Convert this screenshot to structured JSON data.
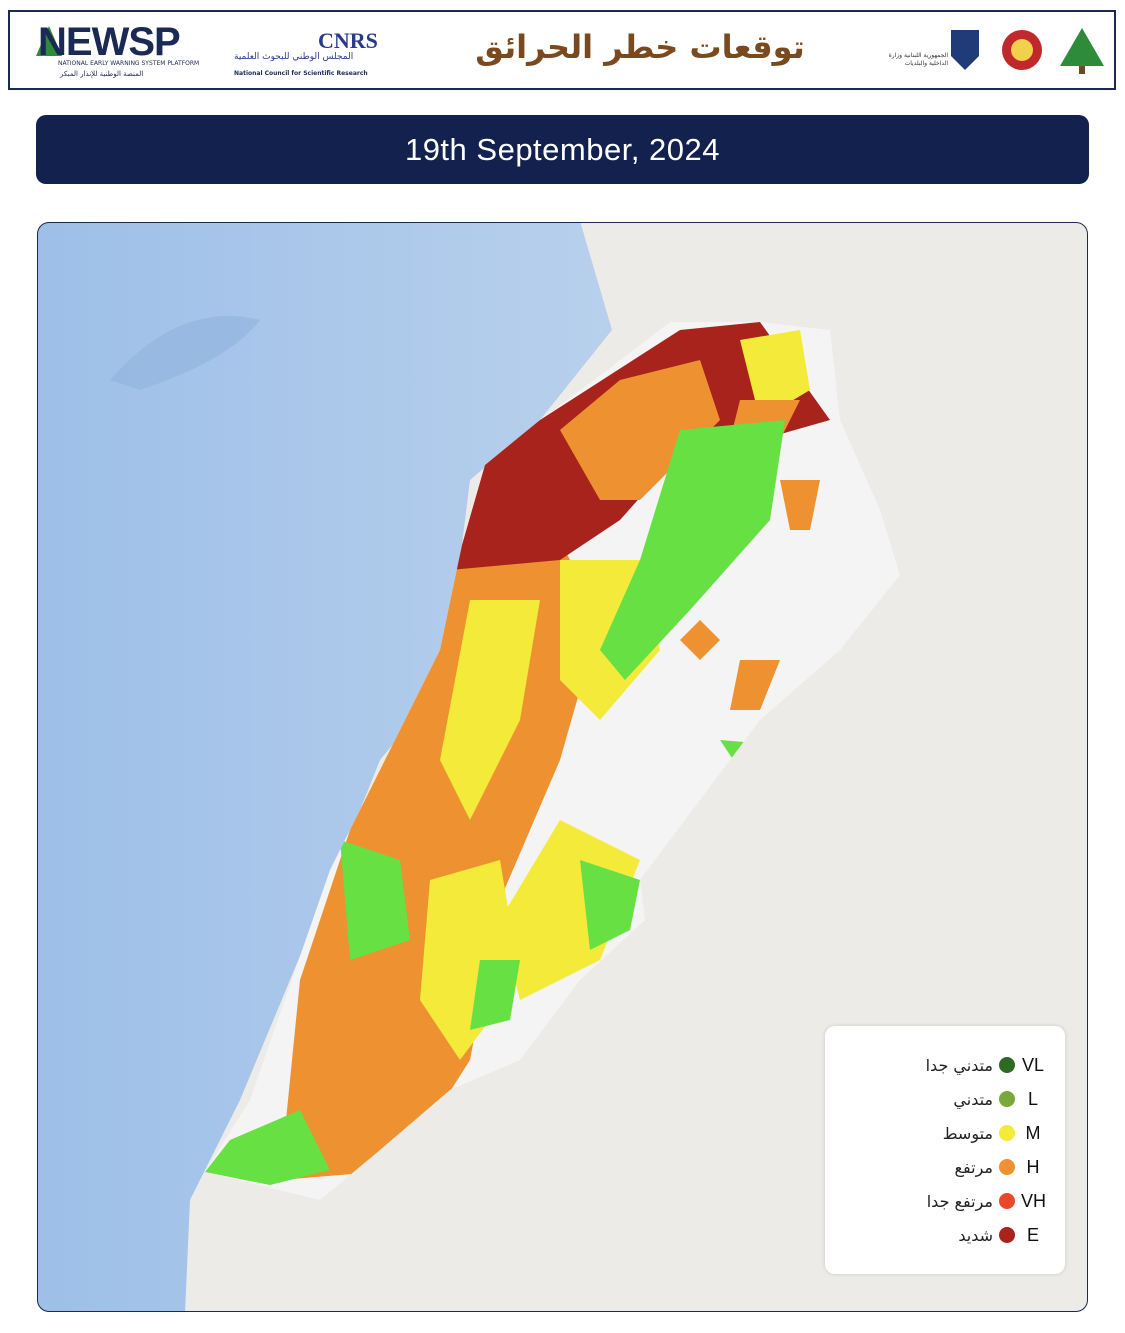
{
  "header": {
    "newsp": "NEWSP",
    "newsp_subtitle": "NATIONAL EARLY WARNING SYSTEM PLATFORM",
    "newsp_arabic": "المنصة الوطنية للإنذار المبكر",
    "cnrs": "CNRS",
    "cnrs_arabic": "المجلس الوطني للبحوث العلمية",
    "cnrs_english": "National Council for Scientific Research",
    "title": "توقعات خطر الحرائق",
    "ministry": "الجمهورية اللبنانية وزارة الداخلية والبلديات"
  },
  "date": "19th September, 2024",
  "legend": [
    {
      "code": "VL",
      "label": "متدني جدا",
      "color": "#2e6b22"
    },
    {
      "code": "L",
      "label": "متدني",
      "color": "#7aa83a"
    },
    {
      "code": "M",
      "label": "متوسط",
      "color": "#f4ea3a"
    },
    {
      "code": "H",
      "label": "مرتفع",
      "color": "#ee9130"
    },
    {
      "code": "VH",
      "label": "مرتفع جدا",
      "color": "#e8492a"
    },
    {
      "code": "E",
      "label": "شديد",
      "color": "#a8231c"
    }
  ]
}
